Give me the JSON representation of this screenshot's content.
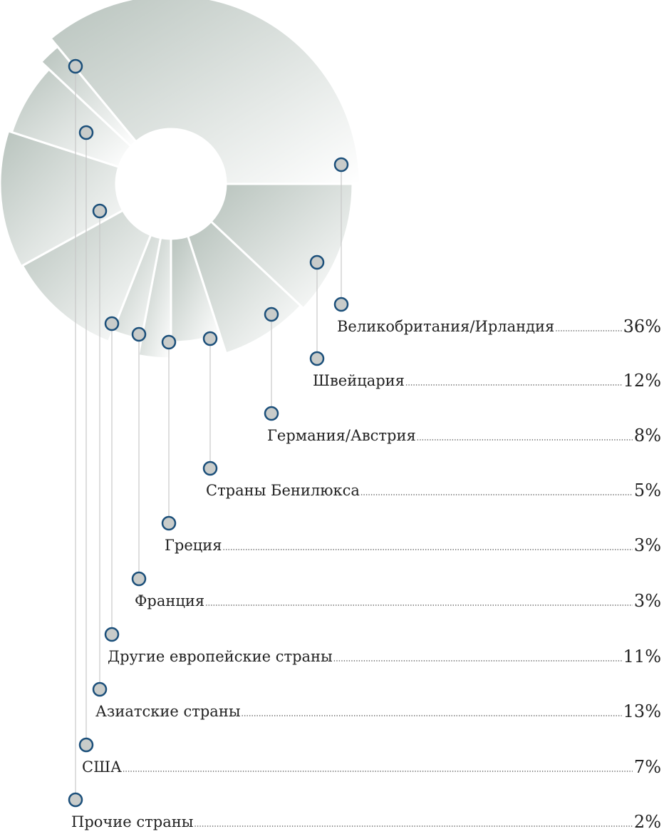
{
  "chart_data": {
    "type": "pie",
    "categories": [
      "Великобритания/Ирландия",
      "Швейцария",
      "Германия/Австрия",
      "Страны Бенилюкса",
      "Греция",
      "Франция",
      "Другие европейские страны",
      "Азиатские страны",
      "США",
      "Прочие страны"
    ],
    "values": [
      36,
      12,
      8,
      5,
      3,
      3,
      11,
      13,
      7,
      2
    ],
    "value_labels": [
      "36%",
      "12%",
      "8%",
      "5%",
      "3%",
      "3%",
      "11%",
      "13%",
      "7%",
      "2%"
    ],
    "color": "#c3ccc7"
  }
}
